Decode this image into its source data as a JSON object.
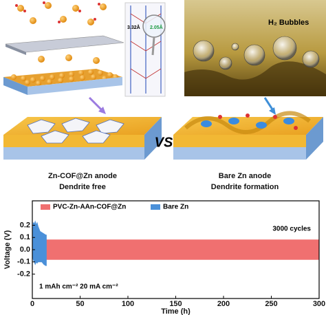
{
  "panels": {
    "bubbles_label": "H₂ Bubbles",
    "bond_labels": [
      "3.32Å",
      "2.05Å"
    ],
    "left_caption": [
      "Zn-COF@Zn anode",
      "Dendrite free"
    ],
    "versus": "VS",
    "right_caption": [
      "Bare Zn anode",
      "Dendrite formation"
    ]
  },
  "chart_data": {
    "type": "area",
    "xlabel": "Time (h)",
    "ylabel": "Voltage (V)",
    "xlim": [
      0,
      300
    ],
    "xticks": [
      0,
      50,
      100,
      150,
      200,
      250,
      300
    ],
    "ylim": [
      -0.4,
      0.4
    ],
    "yticks": [
      -0.2,
      -0.1,
      {
        "value": 0,
        "label": "0.0"
      },
      0.1,
      0.2
    ],
    "legend": "upper left",
    "annotations": [
      "3000 cycles",
      "1 mAh cm⁻²  20 mA cm⁻²"
    ],
    "series": [
      {
        "name": "PVC-Zn-AAn-COF@Zn",
        "color": "#f07070",
        "x": [
          0,
          10,
          15,
          300
        ],
        "high": [
          0.06,
          0.07,
          0.08,
          0.08
        ],
        "low": [
          -0.06,
          -0.07,
          -0.08,
          -0.08
        ]
      },
      {
        "name": "Bare Zn",
        "color": "#4a90d9",
        "x": [
          0,
          1,
          2,
          3,
          4,
          5,
          6,
          8,
          10,
          12,
          14,
          15
        ],
        "high": [
          0.05,
          0.22,
          0.21,
          0.23,
          0.2,
          0.22,
          0.19,
          0.15,
          0.14,
          0.13,
          0.12,
          0.12
        ],
        "low": [
          -0.05,
          -0.08,
          -0.1,
          -0.12,
          -0.1,
          -0.11,
          -0.1,
          -0.1,
          -0.1,
          -0.12,
          -0.13,
          -0.13
        ]
      }
    ]
  }
}
